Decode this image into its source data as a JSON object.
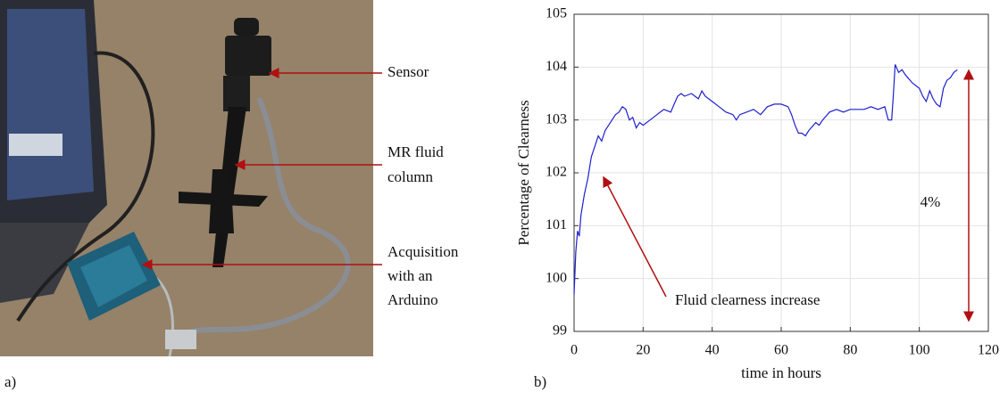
{
  "photo": {
    "panel_label": "a)",
    "labels": [
      [
        "Sensor"
      ],
      [
        "MR fluid",
        "column"
      ],
      [
        "Acquisition",
        "with an",
        "Arduino"
      ]
    ]
  },
  "chart_data": {
    "type": "line",
    "panel_label": "b)",
    "xlabel": "time in hours",
    "ylabel": "Percentage of Clearness",
    "annotations": [
      "4%",
      "Fluid clearness increase"
    ],
    "color": "#1f1fd0",
    "grid": true,
    "xlim": [
      0,
      120
    ],
    "xticks": [
      0,
      20,
      40,
      60,
      80,
      100,
      120
    ],
    "ylim": [
      99,
      105
    ],
    "yticks": [
      99,
      100,
      101,
      102,
      103,
      104,
      105
    ],
    "x": [
      0,
      0.5,
      1,
      1.5,
      2,
      3,
      4,
      5,
      6,
      7,
      8,
      9,
      10,
      11,
      12,
      13,
      14,
      15,
      16,
      17,
      18,
      19,
      20,
      22,
      24,
      26,
      28,
      29,
      30,
      31,
      32,
      34,
      36,
      37,
      38,
      40,
      42,
      44,
      46,
      47,
      48,
      50,
      52,
      54,
      56,
      58,
      60,
      62,
      63,
      64,
      65,
      66,
      67,
      68,
      70,
      71,
      72,
      74,
      76,
      78,
      80,
      82,
      84,
      86,
      88,
      90,
      91,
      92,
      92.5,
      93,
      94,
      95,
      96,
      98,
      100,
      101,
      102,
      103,
      104,
      105,
      106,
      107,
      108,
      109,
      110,
      111
    ],
    "values": [
      99.7,
      100.5,
      100.9,
      100.8,
      101.2,
      101.6,
      101.9,
      102.3,
      102.5,
      102.7,
      102.6,
      102.8,
      102.9,
      103.0,
      103.1,
      103.15,
      103.25,
      103.2,
      103.0,
      103.05,
      102.85,
      102.95,
      102.9,
      103.0,
      103.1,
      103.2,
      103.15,
      103.3,
      103.45,
      103.5,
      103.45,
      103.5,
      103.4,
      103.55,
      103.45,
      103.35,
      103.25,
      103.15,
      103.1,
      103.0,
      103.1,
      103.15,
      103.2,
      103.1,
      103.25,
      103.3,
      103.3,
      103.25,
      103.1,
      102.9,
      102.75,
      102.75,
      102.7,
      102.8,
      102.95,
      102.9,
      103.0,
      103.15,
      103.2,
      103.15,
      103.2,
      103.2,
      103.2,
      103.25,
      103.2,
      103.25,
      103.0,
      103.0,
      103.5,
      104.05,
      103.9,
      103.95,
      103.85,
      103.7,
      103.6,
      103.45,
      103.35,
      103.55,
      103.4,
      103.3,
      103.25,
      103.6,
      103.75,
      103.8,
      103.9,
      103.95
    ]
  }
}
